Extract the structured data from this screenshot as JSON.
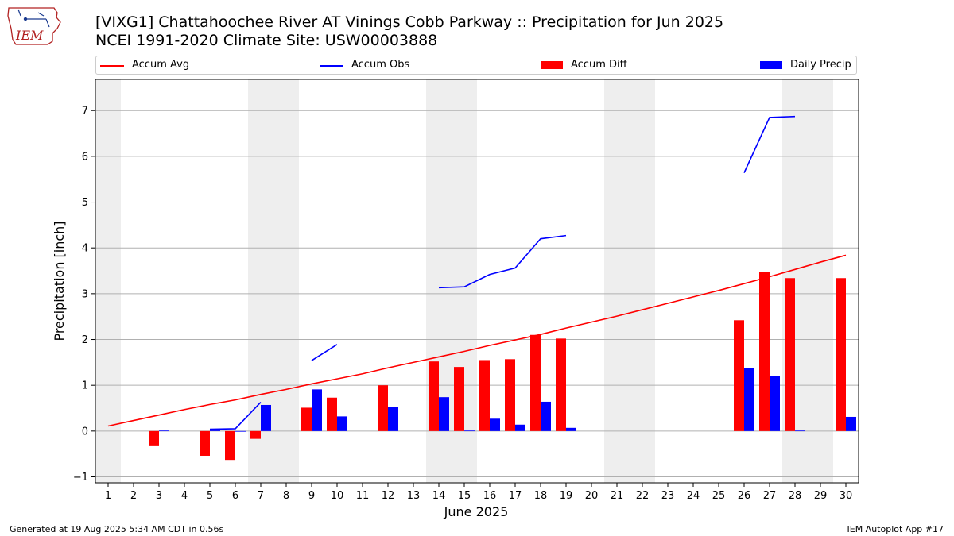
{
  "logo": {
    "text": "IEM"
  },
  "title": {
    "line1": "[VIXG1] Chattahoochee River  AT Vinings Cobb Parkway :: Precipitation for Jun 2025",
    "line2": "NCEI 1991-2020 Climate Site: USW00003888"
  },
  "legend": [
    {
      "label": "Accum Avg",
      "kind": "line",
      "color": "#ff0000"
    },
    {
      "label": "Accum Obs",
      "kind": "line",
      "color": "#0000ff"
    },
    {
      "label": "Accum Diff",
      "kind": "bar",
      "color": "#ff0000"
    },
    {
      "label": "Daily Precip",
      "kind": "bar",
      "color": "#0000ff"
    }
  ],
  "footer": {
    "left": "Generated at 19 Aug 2025 5:34 AM CDT in 0.56s",
    "right": "IEM Autoplot App #17"
  },
  "chart_data": {
    "type": "bar",
    "xlabel": "June 2025",
    "ylabel": "Precipitation [inch]",
    "xlim": [
      0.5,
      30.5
    ],
    "ylim": [
      -1.13,
      7.68
    ],
    "yticks": [
      -1,
      0,
      1,
      2,
      3,
      4,
      5,
      6,
      7
    ],
    "days": [
      1,
      2,
      3,
      4,
      5,
      6,
      7,
      8,
      9,
      10,
      11,
      12,
      13,
      14,
      15,
      16,
      17,
      18,
      19,
      20,
      21,
      22,
      23,
      24,
      25,
      26,
      27,
      28,
      29,
      30
    ],
    "weekend_shading": [
      [
        0.5,
        1.5
      ],
      [
        6.5,
        8.5
      ],
      [
        13.5,
        15.5
      ],
      [
        20.5,
        22.5
      ],
      [
        27.5,
        29.5
      ]
    ],
    "accum_avg": [
      0.11,
      0.23,
      0.35,
      0.47,
      0.58,
      0.68,
      0.8,
      0.91,
      1.03,
      1.14,
      1.25,
      1.38,
      1.5,
      1.62,
      1.74,
      1.87,
      1.99,
      2.11,
      2.25,
      2.38,
      2.51,
      2.65,
      2.79,
      2.93,
      3.07,
      3.22,
      3.37,
      3.53,
      3.69,
      3.84
    ],
    "accum_obs": [
      null,
      null,
      0.0,
      null,
      0.04,
      0.05,
      0.63,
      null,
      1.54,
      1.89,
      null,
      null,
      null,
      3.13,
      3.15,
      3.42,
      3.56,
      4.2,
      4.27,
      null,
      null,
      null,
      null,
      null,
      null,
      5.64,
      6.85,
      6.87,
      null,
      null
    ],
    "accum_diff": [
      null,
      null,
      -0.33,
      null,
      -0.54,
      -0.63,
      -0.17,
      null,
      0.51,
      0.73,
      null,
      1.0,
      null,
      1.52,
      1.4,
      1.55,
      1.57,
      2.1,
      2.02,
      null,
      null,
      null,
      null,
      null,
      null,
      2.42,
      3.48,
      3.34,
      null,
      3.34
    ],
    "daily_precip": [
      null,
      null,
      0.01,
      null,
      0.04,
      0.0,
      0.57,
      null,
      0.91,
      0.32,
      null,
      0.52,
      null,
      0.74,
      0.01,
      0.27,
      0.14,
      0.64,
      0.07,
      null,
      null,
      null,
      null,
      null,
      null,
      1.37,
      1.21,
      0.01,
      null,
      0.31
    ],
    "colors": {
      "avg_line": "#ff0000",
      "obs_line": "#0000ff",
      "diff_bar": "#ff0000",
      "precip_bar": "#0000ff",
      "weekend": "#eeeeee",
      "grid": "#b0b0b0"
    },
    "grid": "horizontal",
    "legend_position": "top"
  }
}
